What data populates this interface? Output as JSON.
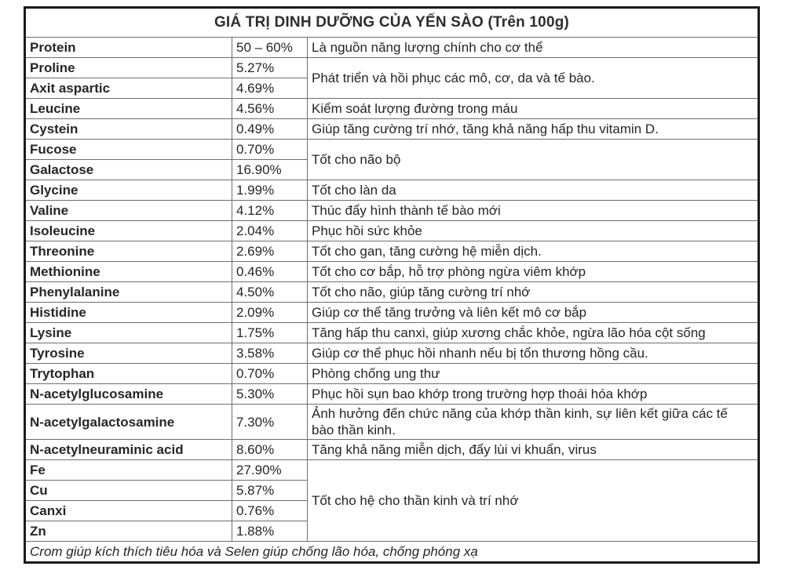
{
  "table": {
    "title": "GIÁ TRỊ DINH DƯỠNG CỦA YẾN SÀO (Trên 100g)",
    "rows": [
      {
        "name": "Protein",
        "value": "50 – 60%",
        "description": "Là nguồn năng lượng chính cho cơ thể"
      },
      {
        "name": "Proline",
        "value": "5.27%",
        "description": "Phát triển và hồi phục các mô, cơ, da và tế bào."
      },
      {
        "name": "Axit aspartic",
        "value": "4.69%"
      },
      {
        "name": "Leucine",
        "value": "4.56%",
        "description": "Kiểm soát lượng đường trong máu"
      },
      {
        "name": "Cystein",
        "value": "0.49%",
        "description": "Giúp tăng cường trí nhớ, tăng khả năng hấp thu vitamin D."
      },
      {
        "name": "Fucose",
        "value": "0.70%",
        "description": "Tốt cho não bộ"
      },
      {
        "name": "Galactose",
        "value": "16.90%"
      },
      {
        "name": "Glycine",
        "value": "1.99%",
        "description": "Tốt cho làn da"
      },
      {
        "name": "Valine",
        "value": "4.12%",
        "description": "Thúc đẩy hình thành tế bào mới"
      },
      {
        "name": "Isoleucine",
        "value": "2.04%",
        "description": "Phục hồi sức khỏe"
      },
      {
        "name": "Threonine",
        "value": "2.69%",
        "description": "Tốt cho gan, tăng cường hệ miễn dịch."
      },
      {
        "name": "Methionine",
        "value": "0.46%",
        "description": "Tốt cho cơ bắp, hỗ trợ phòng ngừa viêm khớp"
      },
      {
        "name": "Phenylalanine",
        "value": "4.50%",
        "description": "Tốt cho não, giúp tăng cường trí nhớ"
      },
      {
        "name": "Histidine",
        "value": "2.09%",
        "description": "Giúp cơ thể tăng trưởng và liên kết mô cơ bắp"
      },
      {
        "name": "Lysine",
        "value": "1.75%",
        "description": "Tăng hấp thu canxi, giúp xương chắc khỏe, ngừa lão hóa cột sống"
      },
      {
        "name": "Tyrosine",
        "value": "3.58%",
        "description": "Giúp cơ thể phục hồi nhanh nếu bị tổn thương hồng cầu."
      },
      {
        "name": "Trytophan",
        "value": "0.70%",
        "description": "Phòng chống ung thư"
      },
      {
        "name": "N-acetylglucosamine",
        "value": "5.30%",
        "description": "Phục hồi sụn bao khớp trong trường hợp thoái hóa khớp"
      },
      {
        "name": "N-acetylgalactosamine",
        "value": "7.30%",
        "description": "Ảnh hưởng đến chức năng của khớp thần kinh, sự liên kết giữa các tế bào thần kinh."
      },
      {
        "name": "N-acetylneuraminic acid",
        "value": "8.60%",
        "description": "Tăng khả năng miễn dịch, đẩy lùi vi khuẩn, virus"
      },
      {
        "name": "Fe",
        "value": "27.90%",
        "description": "Tốt cho hệ cho thần kinh và trí nhớ"
      },
      {
        "name": "Cu",
        "value": "5.87%"
      },
      {
        "name": "Canxi",
        "value": "0.76%"
      },
      {
        "name": "Zn",
        "value": "1.88%"
      }
    ],
    "footnote": "Crom giúp kích thích tiêu hóa và Selen giúp chống lão hóa, chống phóng xạ"
  }
}
